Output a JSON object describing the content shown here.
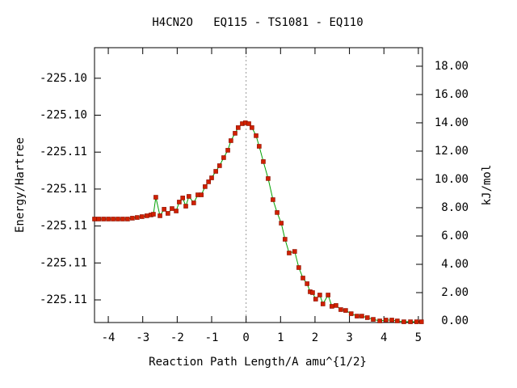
{
  "chart_data": {
    "type": "line",
    "title": "H4CN2O   EQ115 - TS1081 - EQ110",
    "xlabel": "Reaction Path Length/A amu^{1/2}",
    "ylabel": "Energy/Hartree",
    "y2label": "kJ/mol",
    "xlim": [
      -4.4,
      5.12
    ],
    "xticks": [
      -4,
      -3,
      -2,
      -1,
      0,
      1,
      2,
      3,
      4,
      5
    ],
    "ylim": [
      -225.110613,
      -225.103173
    ],
    "yticks": [
      {
        "value": -225.11,
        "label": "-225.11"
      },
      {
        "value": -225.109,
        "label": "-225.11"
      },
      {
        "value": -225.108,
        "label": "-225.11"
      },
      {
        "value": -225.107,
        "label": "-225.11"
      },
      {
        "value": -225.106,
        "label": "-225.11"
      },
      {
        "value": -225.105,
        "label": "-225.10"
      },
      {
        "value": -225.104,
        "label": "-225.10"
      }
    ],
    "y2lim": [
      -0.114,
      19.31
    ],
    "y2ticks": [
      {
        "value": 0,
        "label": "0.00"
      },
      {
        "value": 2,
        "label": "2.00"
      },
      {
        "value": 4,
        "label": "4.00"
      },
      {
        "value": 6,
        "label": "6.00"
      },
      {
        "value": 8,
        "label": "8.00"
      },
      {
        "value": 10,
        "label": "10.00"
      },
      {
        "value": 12,
        "label": "12.00"
      },
      {
        "value": 14,
        "label": "14.00"
      },
      {
        "value": 16,
        "label": "16.00"
      },
      {
        "value": 18,
        "label": "18.00"
      }
    ],
    "x": [
      -4.4,
      -4.28,
      -4.14,
      -4.0,
      -3.86,
      -3.72,
      -3.58,
      -3.44,
      -3.3,
      -3.16,
      -3.02,
      -2.88,
      -2.76,
      -2.69,
      -2.62,
      -2.5,
      -2.38,
      -2.27,
      -2.15,
      -2.03,
      -1.94,
      -1.84,
      -1.75,
      -1.66,
      -1.52,
      -1.4,
      -1.3,
      -1.19,
      -1.09,
      -1.0,
      -0.88,
      -0.77,
      -0.65,
      -0.53,
      -0.44,
      -0.32,
      -0.23,
      -0.11,
      -0.02,
      0.08,
      0.17,
      0.29,
      0.38,
      0.5,
      0.64,
      0.78,
      0.9,
      1.02,
      1.13,
      1.25,
      1.41,
      1.53,
      1.65,
      1.77,
      1.86,
      1.93,
      2.02,
      2.14,
      2.23,
      2.38,
      2.49,
      2.61,
      2.75,
      2.89,
      3.05,
      3.22,
      3.36,
      3.52,
      3.69,
      3.88,
      4.06,
      4.23,
      4.39,
      4.58,
      4.77,
      4.95,
      5.09
    ],
    "series": [
      {
        "color": "#00a000",
        "marker_color": "#d02000",
        "axis": "y2",
        "values": [
          7.2,
          7.2,
          7.2,
          7.2,
          7.2,
          7.2,
          7.2,
          7.2,
          7.26,
          7.31,
          7.37,
          7.43,
          7.49,
          7.54,
          8.74,
          7.43,
          7.89,
          7.6,
          7.94,
          7.77,
          8.4,
          8.69,
          8.11,
          8.8,
          8.34,
          8.91,
          8.91,
          9.49,
          9.83,
          10.11,
          10.57,
          10.97,
          11.54,
          12.06,
          12.74,
          13.26,
          13.66,
          13.94,
          14.0,
          13.94,
          13.66,
          13.09,
          12.34,
          11.26,
          10.06,
          8.57,
          7.66,
          6.91,
          5.77,
          4.8,
          4.91,
          3.77,
          3.03,
          2.63,
          2.06,
          2.0,
          1.54,
          1.83,
          1.2,
          1.83,
          1.03,
          1.09,
          0.8,
          0.74,
          0.51,
          0.34,
          0.34,
          0.23,
          0.11,
          0.0,
          0.06,
          0.06,
          0.0,
          -0.06,
          -0.06,
          -0.06,
          -0.06
        ]
      }
    ]
  }
}
